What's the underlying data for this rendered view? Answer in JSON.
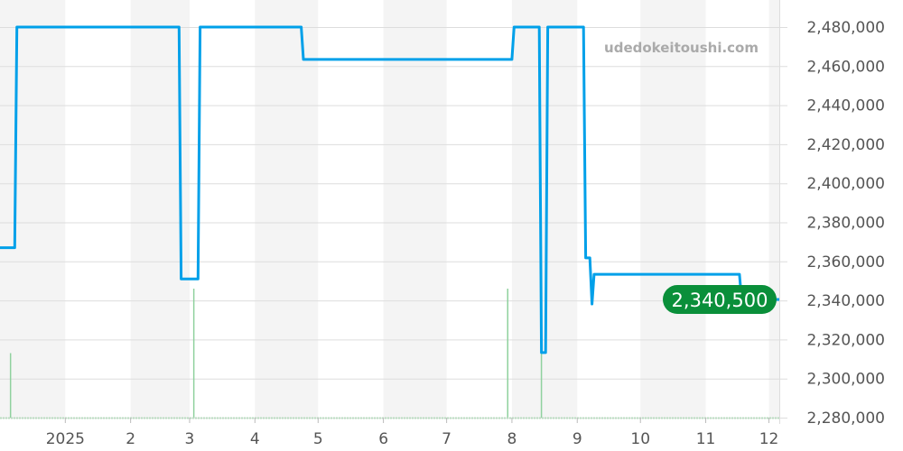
{
  "watermark": "udedokeitoushi.com",
  "colors": {
    "line": "#00a0e9",
    "volume": "#8fd19e",
    "current_badge": "#0a8f3a",
    "band": "#f4f4f4",
    "grid": "#dddddd"
  },
  "chart_data": {
    "type": "line",
    "title": "",
    "xlabel": "",
    "ylabel": "",
    "xlim": [
      "2024-12-01",
      "2025-12-06"
    ],
    "ylim": [
      2280000,
      2480000
    ],
    "grid": true,
    "y_ticks": [
      "2,480,000",
      "2,460,000",
      "2,440,000",
      "2,420,000",
      "2,400,000",
      "2,380,000",
      "2,360,000",
      "2,340,000",
      "2,320,000",
      "2,300,000",
      "2,280,000"
    ],
    "y_tick_values": [
      2480000,
      2460000,
      2440000,
      2420000,
      2400000,
      2380000,
      2360000,
      2340000,
      2320000,
      2300000,
      2280000
    ],
    "x_ticks": [
      {
        "label": "2025",
        "date": "2025-01-01"
      },
      {
        "label": "2",
        "date": "2025-02-01"
      },
      {
        "label": "3",
        "date": "2025-03-01"
      },
      {
        "label": "4",
        "date": "2025-04-01"
      },
      {
        "label": "5",
        "date": "2025-05-01"
      },
      {
        "label": "6",
        "date": "2025-06-01"
      },
      {
        "label": "7",
        "date": "2025-07-01"
      },
      {
        "label": "8",
        "date": "2025-08-01"
      },
      {
        "label": "9",
        "date": "2025-09-01"
      },
      {
        "label": "10",
        "date": "2025-10-01"
      },
      {
        "label": "11",
        "date": "2025-11-01"
      },
      {
        "label": "12",
        "date": "2025-12-01"
      }
    ],
    "current_value_label": "2,340,500",
    "series": [
      {
        "points": [
          [
            "2024-12-01",
            2367000
          ],
          [
            "2024-12-08",
            2367000
          ],
          [
            "2024-12-09",
            2480000
          ],
          [
            "2025-02-24",
            2480000
          ],
          [
            "2025-02-25",
            2351000
          ],
          [
            "2025-03-05",
            2351000
          ],
          [
            "2025-03-06",
            2480000
          ],
          [
            "2025-04-23",
            2480000
          ],
          [
            "2025-04-24",
            2463400
          ],
          [
            "2025-08-01",
            2463400
          ],
          [
            "2025-08-02",
            2480000
          ],
          [
            "2025-08-14",
            2480000
          ],
          [
            "2025-08-15",
            2313300
          ],
          [
            "2025-08-17",
            2313300
          ],
          [
            "2025-08-18",
            2480000
          ],
          [
            "2025-09-04",
            2480000
          ],
          [
            "2025-09-05",
            2361800
          ],
          [
            "2025-09-07",
            2361800
          ],
          [
            "2025-09-08",
            2338200
          ],
          [
            "2025-09-09",
            2353400
          ],
          [
            "2025-11-17",
            2353400
          ],
          [
            "2025-11-18",
            2340500
          ],
          [
            "2025-12-06",
            2340500
          ]
        ]
      }
    ],
    "volume": [
      [
        "2024-12-06",
        1
      ],
      [
        "2025-03-03",
        2
      ],
      [
        "2025-07-30",
        2
      ],
      [
        "2025-08-15",
        1
      ]
    ]
  }
}
